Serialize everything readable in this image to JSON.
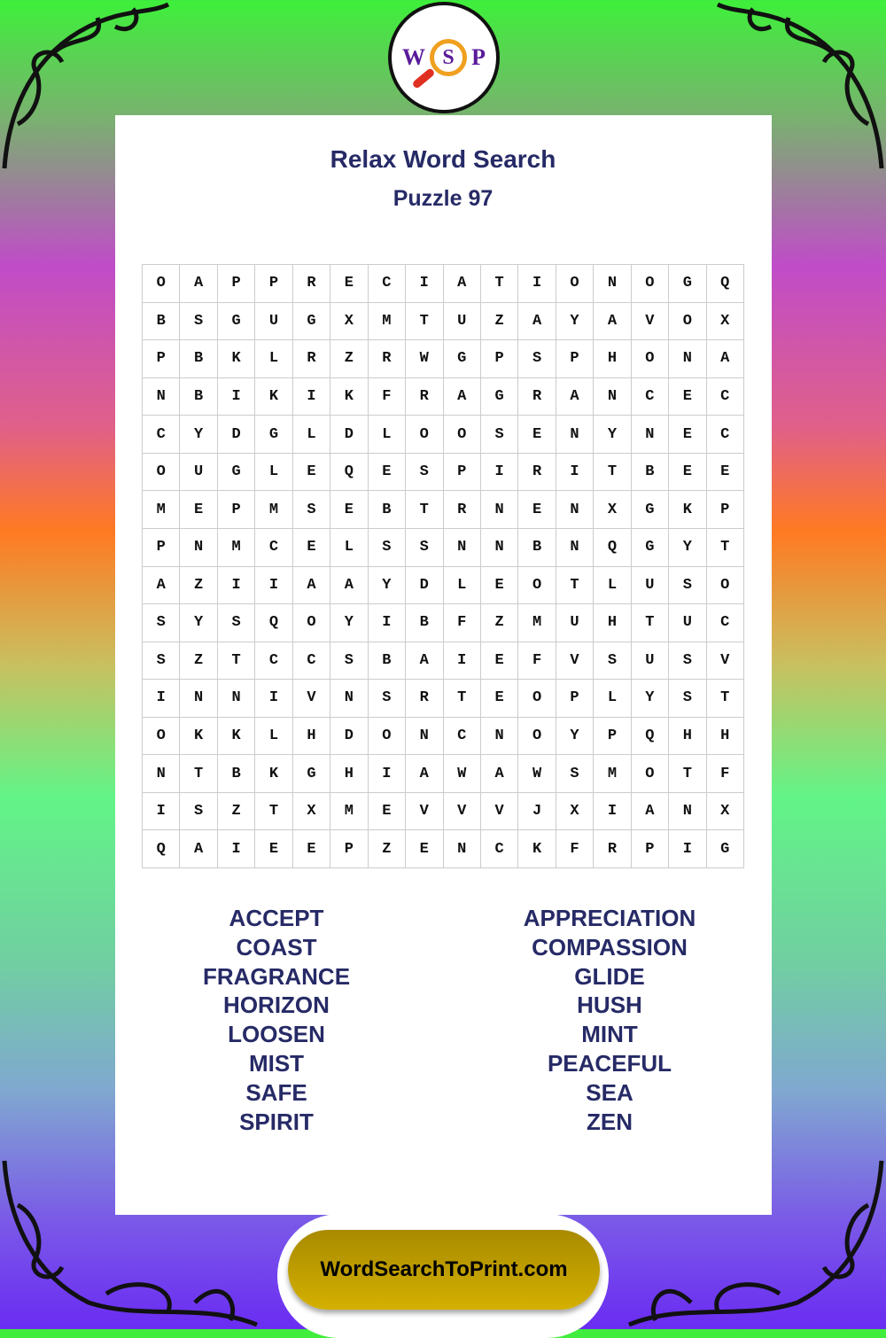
{
  "logo": {
    "letters": [
      "W",
      "S",
      "P"
    ]
  },
  "header": {
    "title": "Relax Word Search",
    "subtitle": "Puzzle 97"
  },
  "grid": {
    "rows": [
      [
        "O",
        "A",
        "P",
        "P",
        "R",
        "E",
        "C",
        "I",
        "A",
        "T",
        "I",
        "O",
        "N",
        "O",
        "G",
        "Q"
      ],
      [
        "B",
        "S",
        "G",
        "U",
        "G",
        "X",
        "M",
        "T",
        "U",
        "Z",
        "A",
        "Y",
        "A",
        "V",
        "O",
        "X"
      ],
      [
        "P",
        "B",
        "K",
        "L",
        "R",
        "Z",
        "R",
        "W",
        "G",
        "P",
        "S",
        "P",
        "H",
        "O",
        "N",
        "A"
      ],
      [
        "N",
        "B",
        "I",
        "K",
        "I",
        "K",
        "F",
        "R",
        "A",
        "G",
        "R",
        "A",
        "N",
        "C",
        "E",
        "C"
      ],
      [
        "C",
        "Y",
        "D",
        "G",
        "L",
        "D",
        "L",
        "O",
        "O",
        "S",
        "E",
        "N",
        "Y",
        "N",
        "E",
        "C"
      ],
      [
        "O",
        "U",
        "G",
        "L",
        "E",
        "Q",
        "E",
        "S",
        "P",
        "I",
        "R",
        "I",
        "T",
        "B",
        "E",
        "E"
      ],
      [
        "M",
        "E",
        "P",
        "M",
        "S",
        "E",
        "B",
        "T",
        "R",
        "N",
        "E",
        "N",
        "X",
        "G",
        "K",
        "P"
      ],
      [
        "P",
        "N",
        "M",
        "C",
        "E",
        "L",
        "S",
        "S",
        "N",
        "N",
        "B",
        "N",
        "Q",
        "G",
        "Y",
        "T"
      ],
      [
        "A",
        "Z",
        "I",
        "I",
        "A",
        "A",
        "Y",
        "D",
        "L",
        "E",
        "O",
        "T",
        "L",
        "U",
        "S",
        "O"
      ],
      [
        "S",
        "Y",
        "S",
        "Q",
        "O",
        "Y",
        "I",
        "B",
        "F",
        "Z",
        "M",
        "U",
        "H",
        "T",
        "U",
        "C"
      ],
      [
        "S",
        "Z",
        "T",
        "C",
        "C",
        "S",
        "B",
        "A",
        "I",
        "E",
        "F",
        "V",
        "S",
        "U",
        "S",
        "V"
      ],
      [
        "I",
        "N",
        "N",
        "I",
        "V",
        "N",
        "S",
        "R",
        "T",
        "E",
        "O",
        "P",
        "L",
        "Y",
        "S",
        "T"
      ],
      [
        "O",
        "K",
        "K",
        "L",
        "H",
        "D",
        "O",
        "N",
        "C",
        "N",
        "O",
        "Y",
        "P",
        "Q",
        "H",
        "H"
      ],
      [
        "N",
        "T",
        "B",
        "K",
        "G",
        "H",
        "I",
        "A",
        "W",
        "A",
        "W",
        "S",
        "M",
        "O",
        "T",
        "F"
      ],
      [
        "I",
        "S",
        "Z",
        "T",
        "X",
        "M",
        "E",
        "V",
        "V",
        "V",
        "J",
        "X",
        "I",
        "A",
        "N",
        "X"
      ],
      [
        "Q",
        "A",
        "I",
        "E",
        "E",
        "P",
        "Z",
        "E",
        "N",
        "C",
        "K",
        "F",
        "R",
        "P",
        "I",
        "G"
      ]
    ]
  },
  "words": {
    "left": [
      "ACCEPT",
      "COAST",
      "FRAGRANCE",
      "HORIZON",
      "LOOSEN",
      "MIST",
      "SAFE",
      "SPIRIT"
    ],
    "right": [
      "APPRECIATION",
      "COMPASSION",
      "GLIDE",
      "HUSH",
      "MINT",
      "PEACEFUL",
      "SEA",
      "ZEN"
    ]
  },
  "footer": {
    "site": "WordSearchToPrint.com"
  }
}
